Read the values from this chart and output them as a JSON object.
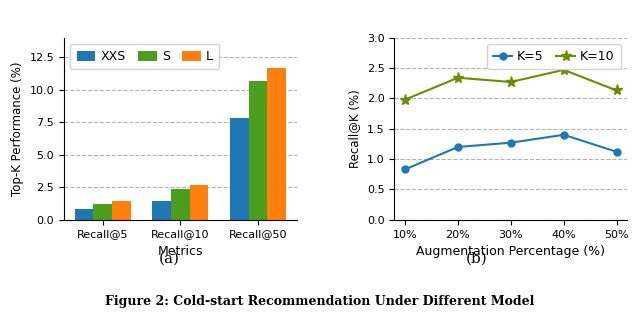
{
  "bar_categories": [
    "Recall@5",
    "Recall@10",
    "Recall@50"
  ],
  "bar_labels": [
    "XXS",
    "S",
    "L"
  ],
  "bar_colors": [
    "#1f77b4",
    "#4c9e1e",
    "#ff7f0e"
  ],
  "bar_values": {
    "XXS": [
      0.85,
      1.45,
      7.85
    ],
    "S": [
      1.25,
      2.35,
      10.65
    ],
    "L": [
      1.45,
      2.7,
      11.65
    ]
  },
  "bar_xlabel": "Metrics",
  "bar_ylabel": "Top-K Performance (%)",
  "bar_ylim": [
    0,
    14
  ],
  "bar_yticks": [
    0.0,
    2.5,
    5.0,
    7.5,
    10.0,
    12.5
  ],
  "line_x": [
    "10%",
    "20%",
    "30%",
    "40%",
    "50%"
  ],
  "line_x_vals": [
    10,
    20,
    30,
    40,
    50
  ],
  "line_k5": [
    0.83,
    1.2,
    1.27,
    1.4,
    1.12
  ],
  "line_k10": [
    1.98,
    2.34,
    2.27,
    2.47,
    2.13
  ],
  "line_colors": [
    "#1f77b4",
    "#6b8e00"
  ],
  "line_markers": [
    "o",
    "*"
  ],
  "line_labels": [
    "K=5",
    "K=10"
  ],
  "line_xlabel": "Augmentation Percentage (%)",
  "line_ylabel": "Recall@K (%)",
  "line_ylim": [
    0.0,
    3.0
  ],
  "line_yticks": [
    0.0,
    0.5,
    1.0,
    1.5,
    2.0,
    2.5,
    3.0
  ],
  "caption_a": "(a)",
  "caption_b": "(b)",
  "figure_caption": "Figure 2: Cold-start Recommendation Under Different Model",
  "fig_width": 6.4,
  "fig_height": 3.14
}
